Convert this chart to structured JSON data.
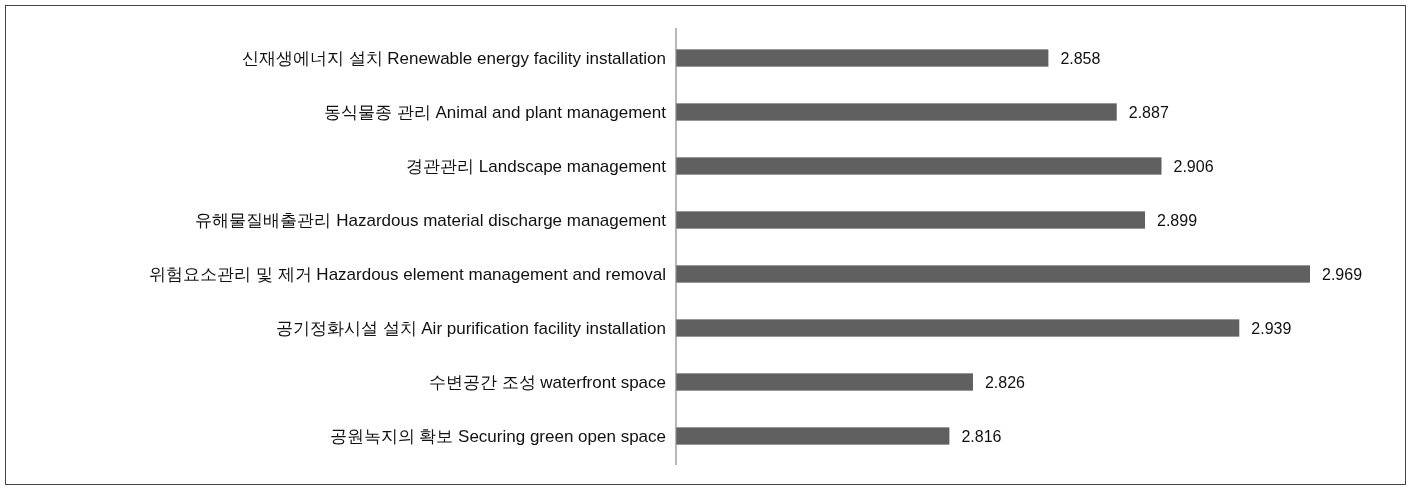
{
  "chart_data": {
    "type": "bar",
    "orientation": "horizontal",
    "categories": [
      "신재생에너지 설치 Renewable energy facility installation",
      "동식물종 관리 Animal and plant management",
      "경관관리 Landscape management",
      "유해물질배출관리 Hazardous material discharge management",
      "위험요소관리 및 제거 Hazardous element management and removal",
      "공기정화시설 설치 Air purification facility installation",
      "수변공간 조성 waterfront space",
      "공원녹지의 확보 Securing green open space"
    ],
    "values": [
      2.858,
      2.887,
      2.906,
      2.899,
      2.969,
      2.939,
      2.826,
      2.816
    ],
    "color": "#606060",
    "xlim": [
      2.7,
      2.969
    ],
    "data_labels": true,
    "tick_labels": "y"
  }
}
